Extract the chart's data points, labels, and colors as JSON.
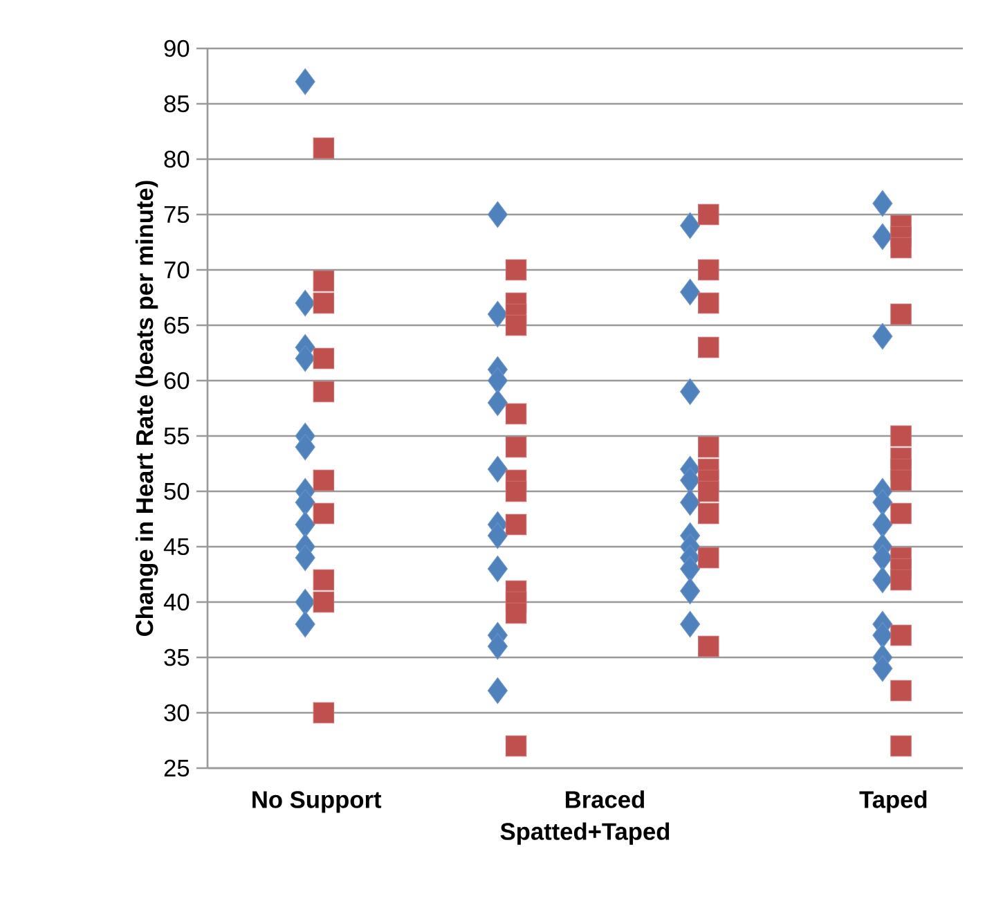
{
  "chart_data": {
    "type": "scatter",
    "xlabel": "Spatted+Taped",
    "ylabel": "Change in Heart Rate (beats per minute)",
    "categories": [
      "No Support",
      null,
      null,
      "Braced",
      null,
      null,
      "Taped"
    ],
    "ylim": [
      25,
      90
    ],
    "yticks": [
      25,
      30,
      35,
      40,
      45,
      50,
      55,
      60,
      65,
      70,
      75,
      80,
      85,
      90
    ],
    "grid": "y",
    "series": [
      {
        "color": "#4f81bd",
        "marker": "diamond",
        "values": [
          87,
          null,
          75,
          null,
          74,
          null,
          76
        ]
      },
      {
        "color": "#4f81bd",
        "marker": "diamond",
        "values": [
          67,
          null,
          66,
          null,
          68,
          null,
          73
        ]
      },
      {
        "color": "#4f81bd",
        "marker": "diamond",
        "values": [
          63,
          null,
          61,
          null,
          59,
          null,
          64
        ]
      },
      {
        "color": "#4f81bd",
        "marker": "diamond",
        "values": [
          62,
          null,
          60,
          null,
          52,
          null,
          50
        ]
      },
      {
        "color": "#4f81bd",
        "marker": "diamond",
        "values": [
          55,
          null,
          58,
          null,
          51,
          null,
          49
        ]
      },
      {
        "color": "#4f81bd",
        "marker": "diamond",
        "values": [
          54,
          null,
          52,
          null,
          49,
          null,
          47
        ]
      },
      {
        "color": "#4f81bd",
        "marker": "diamond",
        "values": [
          50,
          null,
          47,
          null,
          46,
          null,
          45
        ]
      },
      {
        "color": "#4f81bd",
        "marker": "diamond",
        "values": [
          49,
          null,
          46,
          null,
          45,
          null,
          44
        ]
      },
      {
        "color": "#4f81bd",
        "marker": "diamond",
        "values": [
          47,
          null,
          43,
          null,
          44,
          null,
          42
        ]
      },
      {
        "color": "#4f81bd",
        "marker": "diamond",
        "values": [
          45,
          null,
          37,
          null,
          43,
          null,
          38
        ]
      },
      {
        "color": "#4f81bd",
        "marker": "diamond",
        "values": [
          44,
          null,
          36,
          null,
          41,
          null,
          37
        ]
      },
      {
        "color": "#4f81bd",
        "marker": "diamond",
        "values": [
          40,
          null,
          32,
          null,
          38,
          null,
          35
        ]
      },
      {
        "color": "#4f81bd",
        "marker": "diamond",
        "values": [
          38,
          null,
          null,
          null,
          null,
          null,
          34
        ]
      },
      {
        "color": "#c0504d",
        "marker": "square",
        "values": [
          81,
          null,
          70,
          null,
          75,
          null,
          74
        ]
      },
      {
        "color": "#c0504d",
        "marker": "square",
        "values": [
          69,
          null,
          67,
          null,
          70,
          null,
          73
        ]
      },
      {
        "color": "#c0504d",
        "marker": "square",
        "values": [
          67,
          null,
          66,
          null,
          67,
          null,
          72
        ]
      },
      {
        "color": "#c0504d",
        "marker": "square",
        "values": [
          62,
          null,
          65,
          null,
          63,
          null,
          66
        ]
      },
      {
        "color": "#c0504d",
        "marker": "square",
        "values": [
          59,
          null,
          57,
          null,
          54,
          null,
          55
        ]
      },
      {
        "color": "#c0504d",
        "marker": "square",
        "values": [
          51,
          null,
          54,
          null,
          52,
          null,
          53
        ]
      },
      {
        "color": "#c0504d",
        "marker": "square",
        "values": [
          48,
          null,
          51,
          null,
          51,
          null,
          52
        ]
      },
      {
        "color": "#c0504d",
        "marker": "square",
        "values": [
          42,
          null,
          50,
          null,
          50,
          null,
          51
        ]
      },
      {
        "color": "#c0504d",
        "marker": "square",
        "values": [
          40,
          null,
          47,
          null,
          48,
          null,
          48
        ]
      },
      {
        "color": "#c0504d",
        "marker": "square",
        "values": [
          30,
          null,
          41,
          null,
          44,
          null,
          44
        ]
      },
      {
        "color": "#c0504d",
        "marker": "square",
        "values": [
          null,
          null,
          40,
          null,
          36,
          null,
          43
        ]
      },
      {
        "color": "#c0504d",
        "marker": "square",
        "values": [
          null,
          null,
          39,
          null,
          null,
          null,
          42
        ]
      },
      {
        "color": "#c0504d",
        "marker": "square",
        "values": [
          null,
          null,
          27,
          null,
          null,
          null,
          37
        ]
      },
      {
        "color": "#c0504d",
        "marker": "square",
        "values": [
          null,
          null,
          null,
          null,
          null,
          null,
          32
        ]
      },
      {
        "color": "#c0504d",
        "marker": "square",
        "values": [
          null,
          null,
          null,
          null,
          null,
          null,
          27
        ]
      }
    ]
  }
}
